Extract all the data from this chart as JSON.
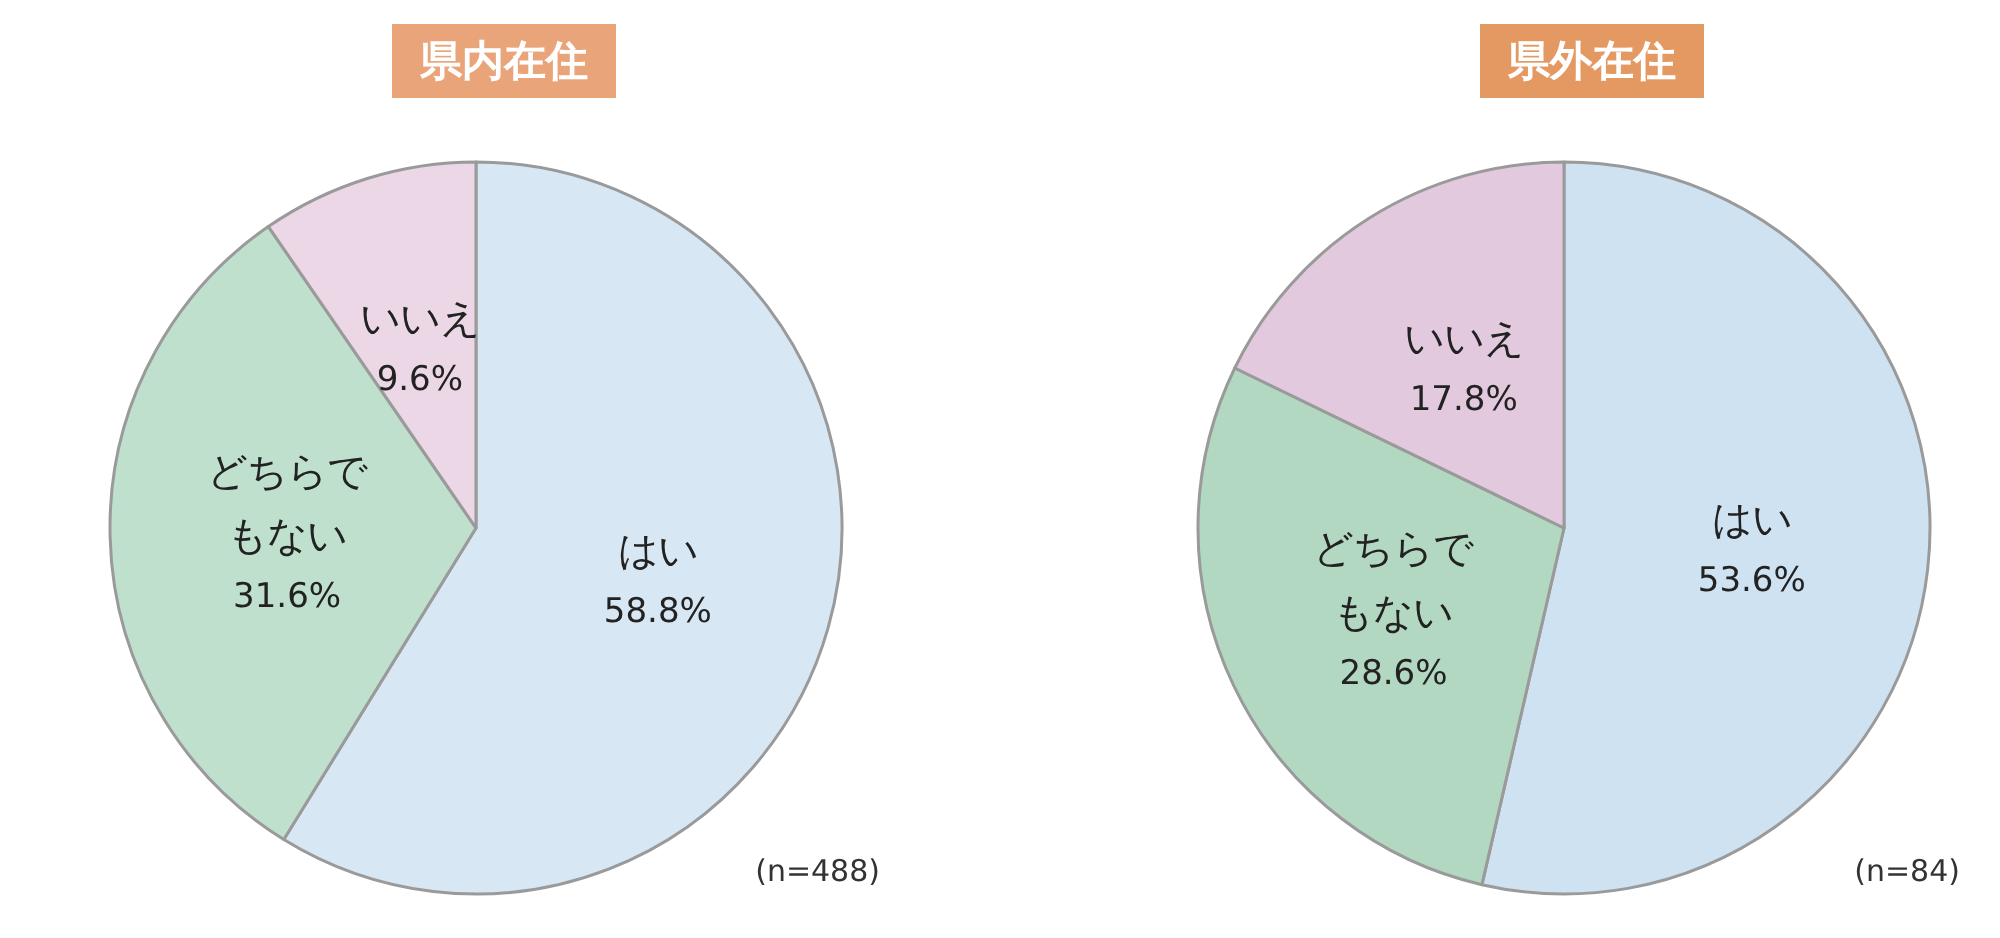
{
  "chart_data": [
    {
      "type": "pie",
      "title": "県内在住",
      "categories": [
        "はい",
        "どちらでもない",
        "いいえ"
      ],
      "values": [
        58.8,
        31.6,
        9.6
      ],
      "colors": [
        "#d7e7f3",
        "#bfe0cd",
        "#ecd7e6"
      ],
      "value_labels": [
        "58.8%",
        "31.6%",
        "9.6%"
      ],
      "legend": false,
      "annotations": [
        "(n=488)"
      ]
    },
    {
      "type": "pie",
      "title": "県外在住",
      "categories": [
        "はい",
        "どちらでもない",
        "いいえ"
      ],
      "values": [
        53.6,
        28.6,
        17.8
      ],
      "colors": [
        "#cfe2f1",
        "#b3d8c2",
        "#e3c9de"
      ],
      "value_labels": [
        "53.6%",
        "28.6%",
        "17.8%"
      ],
      "legend": false,
      "annotations": [
        "(n=84)"
      ]
    }
  ]
}
